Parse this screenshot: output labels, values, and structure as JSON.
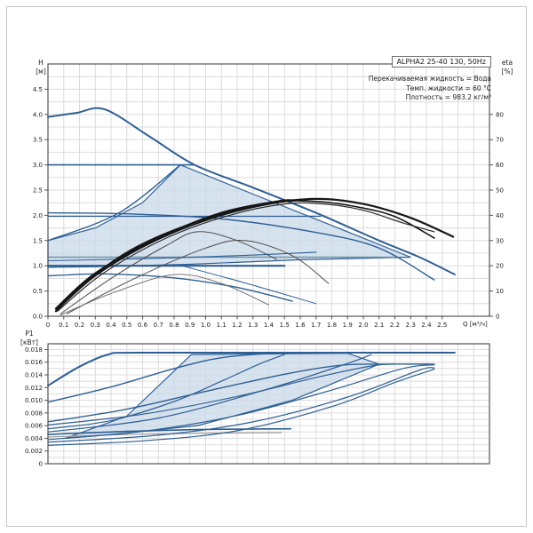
{
  "page": {
    "background": "#ffffff",
    "outer_border_color": "#c6c6c6"
  },
  "header": {
    "model": "ALPHA2 25-40 130, 50Hz",
    "info_lines": [
      "Перекачиваемая жидкость = Вода",
      "Темп. жидкости = 60 °C",
      "Плотность = 983.2 кг/м³"
    ]
  },
  "colors": {
    "curve_blue": "#2e5f94",
    "steel": "#6d93a8",
    "eta_black": "#161616",
    "eta_gray": "#4d4d4d",
    "shade": "#c9d8ea",
    "grid": "#dcdcdc",
    "frame": "#555555",
    "text": "#1c1c1c"
  },
  "chart_data": [
    {
      "type": "line",
      "id": "head-chart",
      "title": "",
      "xlabel": "Q [м³/ч]",
      "ylabel_left": [
        "H",
        "[м]"
      ],
      "ylabel_right": [
        "eta",
        "[%]"
      ],
      "xlim": [
        0,
        2.8
      ],
      "ylim_left": [
        0,
        5.0
      ],
      "ylim_right": [
        0,
        100
      ],
      "grid": true,
      "x_tick_labels": [
        "0",
        "0.1",
        "0.2",
        "0.3",
        "0.4",
        "0.5",
        "0.6",
        "0.7",
        "0.8",
        "0.9",
        "1.0",
        "1.1",
        "1.2",
        "1.3",
        "1.4",
        "1.5",
        "1.6",
        "1.7",
        "1.8",
        "1.9",
        "2.0",
        "2.1",
        "2.2",
        "2.3",
        "2.4",
        "2.5"
      ],
      "y_tick_labels_left": [
        "0.0",
        "0.5",
        "1.0",
        "1.5",
        "2.0",
        "2.5",
        "3.0",
        "3.5",
        "4.0",
        "4.5"
      ],
      "y_tick_labels_right": [
        "0",
        "10",
        "20",
        "30",
        "40",
        "50",
        "60",
        "70",
        "80"
      ],
      "shaded_region": {
        "axis": "left",
        "points": [
          [
            0,
            1.5
          ],
          [
            0.3,
            1.75
          ],
          [
            0.6,
            2.25
          ],
          [
            0.84,
            3.0
          ],
          [
            1.3,
            2.42
          ],
          [
            1.8,
            1.8
          ],
          [
            2.3,
            1.17
          ],
          [
            1.6,
            1.12
          ],
          [
            0.9,
            1.03
          ],
          [
            0.3,
            0.98
          ],
          [
            0,
            0.97
          ]
        ]
      },
      "series": [
        {
          "name": "speed-3-max-curve",
          "axis": "left",
          "color": "#2e5f94",
          "width": 2,
          "smooth": true,
          "points": [
            [
              0,
              3.95
            ],
            [
              0.18,
              4.03
            ],
            [
              0.36,
              4.1
            ],
            [
              0.65,
              3.55
            ],
            [
              0.93,
              3.0
            ],
            [
              1.3,
              2.55
            ],
            [
              1.7,
              2.05
            ],
            [
              2.1,
              1.5
            ],
            [
              2.35,
              1.18
            ],
            [
              2.58,
              0.83
            ]
          ]
        },
        {
          "name": "const-pressure-3.0",
          "axis": "left",
          "color": "#2e5f94",
          "width": 1.6,
          "smooth": false,
          "points": [
            [
              0,
              3.0
            ],
            [
              0.93,
              3.0
            ]
          ]
        },
        {
          "name": "speed-2-curve",
          "axis": "left",
          "color": "#2e5f94",
          "width": 1.4,
          "smooth": true,
          "points": [
            [
              0,
              2.05
            ],
            [
              0.5,
              2.03
            ],
            [
              1.1,
              1.93
            ],
            [
              1.7,
              1.66
            ],
            [
              2.1,
              1.35
            ],
            [
              2.45,
              0.72
            ]
          ]
        },
        {
          "name": "const-pressure-2.0",
          "axis": "left",
          "color": "#2e5f94",
          "width": 1.2,
          "smooth": false,
          "points": [
            [
              0,
              1.98
            ],
            [
              1.73,
              1.98
            ]
          ]
        },
        {
          "name": "prop-pressure-2",
          "axis": "left",
          "color": "#2e5f94",
          "width": 1.4,
          "smooth": true,
          "points": [
            [
              0,
              1.5
            ],
            [
              0.45,
              2.05
            ],
            [
              0.84,
              3.0
            ]
          ]
        },
        {
          "name": "steel-reference-line",
          "axis": "left",
          "color": "#6d93a8",
          "width": 1.6,
          "smooth": false,
          "points": [
            [
              0,
              1.17
            ],
            [
              2.2,
              1.17
            ]
          ]
        },
        {
          "name": "prop-pressure-1",
          "axis": "left",
          "color": "#2e5f94",
          "width": 1.1,
          "smooth": true,
          "points": [
            [
              0,
              1.1
            ],
            [
              0.6,
              1.14
            ],
            [
              1.2,
              1.2
            ],
            [
              1.7,
              1.27
            ]
          ]
        },
        {
          "name": "const-pressure-1.0",
          "axis": "left",
          "color": "#2e5f94",
          "width": 2.2,
          "smooth": false,
          "points": [
            [
              0,
              1.0
            ],
            [
              1.5,
              1.0
            ]
          ]
        },
        {
          "name": "descending-thin-curve",
          "axis": "left",
          "color": "#2e5f94",
          "width": 1,
          "smooth": true,
          "points": [
            [
              0.85,
              1.0
            ],
            [
              1.25,
              0.66
            ],
            [
              1.7,
              0.25
            ]
          ]
        },
        {
          "name": "speed-1-curve",
          "axis": "left",
          "color": "#2e5f94",
          "width": 1.4,
          "smooth": true,
          "points": [
            [
              0,
              0.8
            ],
            [
              0.35,
              0.84
            ],
            [
              0.8,
              0.76
            ],
            [
              1.2,
              0.57
            ],
            [
              1.55,
              0.3
            ]
          ]
        },
        {
          "name": "eta-curve-1",
          "axis": "right",
          "color": "#161616",
          "width": 2.2,
          "smooth": true,
          "points": [
            [
              0.05,
              2
            ],
            [
              0.25,
              14
            ],
            [
              0.55,
              27
            ],
            [
              0.95,
              37.5
            ],
            [
              1.35,
              44
            ],
            [
              1.7,
              46.5
            ],
            [
              2.0,
              44.5
            ],
            [
              2.3,
              39
            ],
            [
              2.57,
              31.5
            ]
          ]
        },
        {
          "name": "eta-curve-2",
          "axis": "right",
          "color": "#161616",
          "width": 1.6,
          "smooth": true,
          "points": [
            [
              0.05,
              2
            ],
            [
              0.3,
              16
            ],
            [
              0.65,
              29
            ],
            [
              1.05,
              39
            ],
            [
              1.45,
              45
            ],
            [
              1.7,
              45.5
            ],
            [
              1.95,
              43.5
            ],
            [
              2.2,
              39.5
            ],
            [
              2.45,
              31
            ]
          ]
        },
        {
          "name": "eta-curve-3",
          "axis": "right",
          "color": "#2a2a2a",
          "width": 1.2,
          "smooth": true,
          "points": [
            [
              0.06,
              2
            ],
            [
              0.35,
              17
            ],
            [
              0.75,
              31
            ],
            [
              1.15,
              40
            ],
            [
              1.5,
              44.5
            ],
            [
              1.75,
              44.5
            ],
            [
              2.0,
              42
            ],
            [
              2.25,
              37
            ],
            [
              2.45,
              33.5
            ]
          ]
        },
        {
          "name": "eta-curve-4",
          "axis": "right",
          "color": "#161616",
          "width": 2.2,
          "smooth": true,
          "points": [
            [
              0.05,
              3
            ],
            [
              0.3,
              17
            ],
            [
              0.7,
              31
            ],
            [
              1.1,
              41
            ],
            [
              1.45,
              45.5
            ],
            [
              1.55,
              46
            ]
          ]
        },
        {
          "name": "eta-minor-1",
          "axis": "right",
          "color": "#4d4d4d",
          "width": 1,
          "smooth": true,
          "points": [
            [
              0.08,
              1
            ],
            [
              0.4,
              15
            ],
            [
              0.75,
              28
            ],
            [
              0.95,
              33.5
            ],
            [
              1.2,
              30
            ],
            [
              1.45,
              22.5
            ]
          ]
        },
        {
          "name": "eta-minor-2",
          "axis": "right",
          "color": "#4d4d4d",
          "width": 1,
          "smooth": true,
          "points": [
            [
              0.12,
              1
            ],
            [
              0.55,
              15
            ],
            [
              1.0,
              27
            ],
            [
              1.25,
              30
            ],
            [
              1.55,
              24
            ],
            [
              1.78,
              13
            ]
          ]
        },
        {
          "name": "eta-minor-3",
          "axis": "right",
          "color": "#6a6a6a",
          "width": 0.9,
          "smooth": true,
          "points": [
            [
              0.08,
              0.5
            ],
            [
              0.4,
              9
            ],
            [
              0.8,
              16.5
            ],
            [
              1.1,
              13
            ],
            [
              1.4,
              4.5
            ]
          ]
        }
      ]
    },
    {
      "type": "line",
      "id": "power-chart",
      "title": "",
      "xlabel": "",
      "ylabel_left": [
        "P1",
        "[кВт]"
      ],
      "xlim": [
        0,
        2.8
      ],
      "ylim_left": [
        0,
        0.0189
      ],
      "grid": true,
      "y_tick_labels_left": [
        "0",
        "0.002",
        "0.004",
        "0.006",
        "0.008",
        "0.010",
        "0.012",
        "0.014",
        "0.016",
        "0.018"
      ],
      "shaded_region": {
        "axis": "left",
        "points": [
          [
            0.11,
            0.004
          ],
          [
            0.5,
            0.0075
          ],
          [
            0.91,
            0.0172
          ],
          [
            1.9,
            0.0174
          ],
          [
            2.1,
            0.0157
          ],
          [
            1.55,
            0.01
          ],
          [
            0.95,
            0.006
          ],
          [
            0.4,
            0.0046
          ],
          [
            0.11,
            0.004
          ]
        ]
      },
      "series": [
        {
          "name": "p1-speed-3",
          "axis": "left",
          "color": "#2e5f94",
          "width": 2,
          "smooth": true,
          "points": [
            [
              0,
              0.0123
            ],
            [
              0.2,
              0.0153
            ],
            [
              0.38,
              0.0172
            ],
            [
              0.55,
              0.0175
            ],
            [
              1.5,
              0.0175
            ],
            [
              2.58,
              0.0175
            ]
          ]
        },
        {
          "name": "p1-cp3",
          "axis": "left",
          "color": "#2e5f94",
          "width": 1.4,
          "smooth": true,
          "points": [
            [
              0,
              0.0097
            ],
            [
              0.4,
              0.0121
            ],
            [
              0.8,
              0.015
            ],
            [
              1.1,
              0.0167
            ],
            [
              1.45,
              0.0174
            ],
            [
              1.9,
              0.0175
            ]
          ]
        },
        {
          "name": "p1-speed-2",
          "axis": "left",
          "color": "#2e5f94",
          "width": 1.4,
          "smooth": true,
          "points": [
            [
              0,
              0.0066
            ],
            [
              0.5,
              0.0086
            ],
            [
              1.0,
              0.0114
            ],
            [
              1.5,
              0.0141
            ],
            [
              1.85,
              0.0155
            ],
            [
              2.1,
              0.0157
            ],
            [
              2.45,
              0.0157
            ]
          ]
        },
        {
          "name": "p1-cp2",
          "axis": "left",
          "color": "#2e5f94",
          "width": 1.2,
          "smooth": true,
          "points": [
            [
              0,
              0.0061
            ],
            [
              0.6,
              0.0078
            ],
            [
              1.2,
              0.0106
            ],
            [
              1.7,
              0.0136
            ],
            [
              2.05,
              0.0154
            ],
            [
              2.2,
              0.0157
            ]
          ]
        },
        {
          "name": "p1-pp2",
          "axis": "left",
          "color": "#2e5f94",
          "width": 1.2,
          "smooth": true,
          "points": [
            [
              0,
              0.0055
            ],
            [
              0.4,
              0.0068
            ],
            [
              0.8,
              0.0098
            ],
            [
              1.1,
              0.013
            ],
            [
              1.35,
              0.0158
            ],
            [
              1.5,
              0.0172
            ]
          ]
        },
        {
          "name": "p1-mid-diagonal",
          "axis": "left",
          "color": "#2e5f94",
          "width": 1.2,
          "smooth": true,
          "points": [
            [
              0,
              0.005
            ],
            [
              0.7,
              0.0072
            ],
            [
              1.4,
              0.0118
            ],
            [
              1.9,
              0.0158
            ],
            [
              2.05,
              0.0172
            ]
          ]
        },
        {
          "name": "p1-speed-1",
          "axis": "left",
          "color": "#2e5f94",
          "width": 1.6,
          "smooth": true,
          "points": [
            [
              0,
              0.0046
            ],
            [
              0.5,
              0.0051
            ],
            [
              1.0,
              0.0054
            ],
            [
              1.54,
              0.0055
            ]
          ]
        },
        {
          "name": "p1-speed-1-gray",
          "axis": "left",
          "color": "#8a8a8a",
          "width": 1,
          "smooth": true,
          "points": [
            [
              0,
              0.0042
            ],
            [
              0.5,
              0.0046
            ],
            [
              1.0,
              0.0048
            ],
            [
              1.48,
              0.0049
            ]
          ]
        },
        {
          "name": "p1-pp1",
          "axis": "left",
          "color": "#2e5f94",
          "width": 1.2,
          "smooth": true,
          "points": [
            [
              0,
              0.0038
            ],
            [
              0.6,
              0.0051
            ],
            [
              1.2,
              0.0076
            ],
            [
              1.8,
              0.0116
            ],
            [
              2.25,
              0.015
            ],
            [
              2.45,
              0.0156
            ]
          ]
        },
        {
          "name": "p1-cp1",
          "axis": "left",
          "color": "#2e5f94",
          "width": 1.2,
          "smooth": true,
          "points": [
            [
              0,
              0.0034
            ],
            [
              0.7,
              0.0045
            ],
            [
              1.3,
              0.0066
            ],
            [
              1.9,
              0.0105
            ],
            [
              2.35,
              0.0147
            ],
            [
              2.45,
              0.0151
            ]
          ]
        },
        {
          "name": "p1-low",
          "axis": "left",
          "color": "#2e5f94",
          "width": 1.2,
          "smooth": true,
          "points": [
            [
              0,
              0.0029
            ],
            [
              0.6,
              0.0036
            ],
            [
              1.2,
              0.0052
            ],
            [
              1.8,
              0.009
            ],
            [
              2.2,
              0.0128
            ],
            [
              2.45,
              0.0149
            ]
          ]
        }
      ]
    }
  ]
}
